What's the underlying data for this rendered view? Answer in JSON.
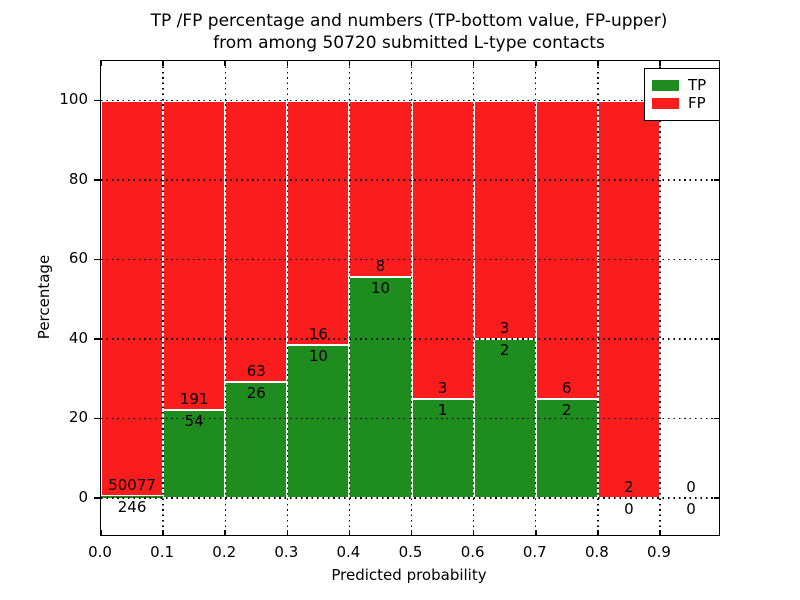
{
  "figure": {
    "title_line1": "TP /FP percentage and numbers (TP-bottom value, FP-upper)",
    "title_line2": "from among 50720 submitted L-type contacts",
    "background_color": "#ffffff"
  },
  "chart_data": {
    "type": "bar",
    "subtype": "stacked-percentage-histogram",
    "title": "TP /FP percentage and numbers (TP-bottom value, FP-upper)\nfrom among 50720 submitted L-type contacts",
    "xlabel": "Predicted probability",
    "ylabel": "Percentage",
    "total_contacts": 50720,
    "xlim": [
      0.0,
      0.995
    ],
    "ylim": [
      -9.3,
      110
    ],
    "grid": "dotted",
    "xticks": [
      {
        "value": 0.0,
        "label": "0.0"
      },
      {
        "value": 0.1,
        "label": "0.1"
      },
      {
        "value": 0.2,
        "label": "0.2"
      },
      {
        "value": 0.3,
        "label": "0.3"
      },
      {
        "value": 0.4,
        "label": "0.4"
      },
      {
        "value": 0.5,
        "label": "0.5"
      },
      {
        "value": 0.6,
        "label": "0.6"
      },
      {
        "value": 0.7,
        "label": "0.7"
      },
      {
        "value": 0.8,
        "label": "0.8"
      },
      {
        "value": 0.9,
        "label": "0.9"
      }
    ],
    "yticks": [
      {
        "value": 0,
        "label": "0"
      },
      {
        "value": 20,
        "label": "20"
      },
      {
        "value": 40,
        "label": "40"
      },
      {
        "value": 60,
        "label": "60"
      },
      {
        "value": 80,
        "label": "80"
      },
      {
        "value": 100,
        "label": "100"
      }
    ],
    "colors": {
      "tp": "#1f8c1f",
      "fp": "#fb1d1d",
      "bar_edge": "#ffffff"
    },
    "legend": {
      "position": "upper-right",
      "entries": [
        {
          "label": "TP",
          "color": "#1f8c1f"
        },
        {
          "label": "FP",
          "color": "#fb1d1d"
        }
      ]
    },
    "bins": [
      {
        "range": [
          0.0,
          0.1
        ],
        "tp": 246,
        "fp": 50077,
        "tp_pct": 0.49
      },
      {
        "range": [
          0.1,
          0.2
        ],
        "tp": 54,
        "fp": 191,
        "tp_pct": 22.04
      },
      {
        "range": [
          0.2,
          0.3
        ],
        "tp": 26,
        "fp": 63,
        "tp_pct": 29.21
      },
      {
        "range": [
          0.3,
          0.4
        ],
        "tp": 10,
        "fp": 16,
        "tp_pct": 38.46
      },
      {
        "range": [
          0.4,
          0.5
        ],
        "tp": 10,
        "fp": 8,
        "tp_pct": 55.56
      },
      {
        "range": [
          0.5,
          0.6
        ],
        "tp": 1,
        "fp": 3,
        "tp_pct": 25.0
      },
      {
        "range": [
          0.6,
          0.7
        ],
        "tp": 2,
        "fp": 3,
        "tp_pct": 40.0
      },
      {
        "range": [
          0.7,
          0.8
        ],
        "tp": 2,
        "fp": 6,
        "tp_pct": 25.0
      },
      {
        "range": [
          0.8,
          0.9
        ],
        "tp": 0,
        "fp": 2,
        "tp_pct": 0.0
      },
      {
        "range": [
          0.9,
          1.0
        ],
        "tp": 0,
        "fp": 0,
        "tp_pct": null
      }
    ]
  }
}
